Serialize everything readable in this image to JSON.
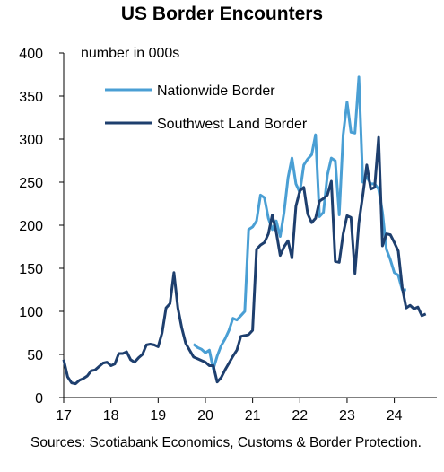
{
  "chart_data": {
    "type": "line",
    "title": "US Border Encounters",
    "annotation": "number in 000s",
    "ylim": [
      0,
      400
    ],
    "y_ticks": [
      0,
      50,
      100,
      150,
      200,
      250,
      300,
      350,
      400
    ],
    "xlim": [
      2017.0,
      2024.9
    ],
    "x_ticks": [
      2017,
      2018,
      2019,
      2020,
      2021,
      2022,
      2023,
      2024
    ],
    "x_tick_labels": [
      "17",
      "18",
      "19",
      "20",
      "21",
      "22",
      "23",
      "24"
    ],
    "legend_position": "top-center",
    "grid": false,
    "series": [
      {
        "name": "Nationwide Border",
        "color": "#4a9fd4",
        "x_start": "2019-10",
        "values": [
          62,
          58,
          56,
          52,
          55,
          33,
          48,
          60,
          68,
          78,
          92,
          90,
          95,
          100,
          195,
          198,
          205,
          235,
          232,
          208,
          195,
          205,
          187,
          215,
          255,
          278,
          248,
          238,
          270,
          277,
          282,
          305,
          210,
          215,
          258,
          278,
          275,
          212,
          305,
          343,
          308,
          307,
          372,
          250,
          256,
          248,
          248,
          242,
          215,
          172,
          160,
          145,
          142,
          125,
          125
        ]
      },
      {
        "name": "Southwest Land Border",
        "color": "#1e3f6e",
        "x_start": "2017-01",
        "values": [
          44,
          24,
          17,
          16,
          20,
          22,
          25,
          31,
          32,
          36,
          40,
          41,
          37,
          39,
          51,
          51,
          53,
          44,
          41,
          46,
          50,
          61,
          62,
          61,
          59,
          75,
          104,
          109,
          145,
          104,
          81,
          63,
          55,
          47,
          45,
          43,
          41,
          37,
          37,
          18,
          23,
          32,
          40,
          48,
          55,
          71,
          72,
          73,
          78,
          172,
          177,
          180,
          190,
          212,
          192,
          165,
          175,
          182,
          162,
          222,
          240,
          244,
          213,
          203,
          208,
          228,
          231,
          235,
          251,
          158,
          157,
          190,
          211,
          209,
          144,
          203,
          235,
          270,
          242,
          244,
          302,
          176,
          190,
          189,
          180,
          170,
          128,
          104,
          107,
          103,
          105,
          95,
          97
        ]
      }
    ]
  },
  "footer": {
    "source": "Sources: Scotiabank Economics, Customs & Border Protection."
  }
}
